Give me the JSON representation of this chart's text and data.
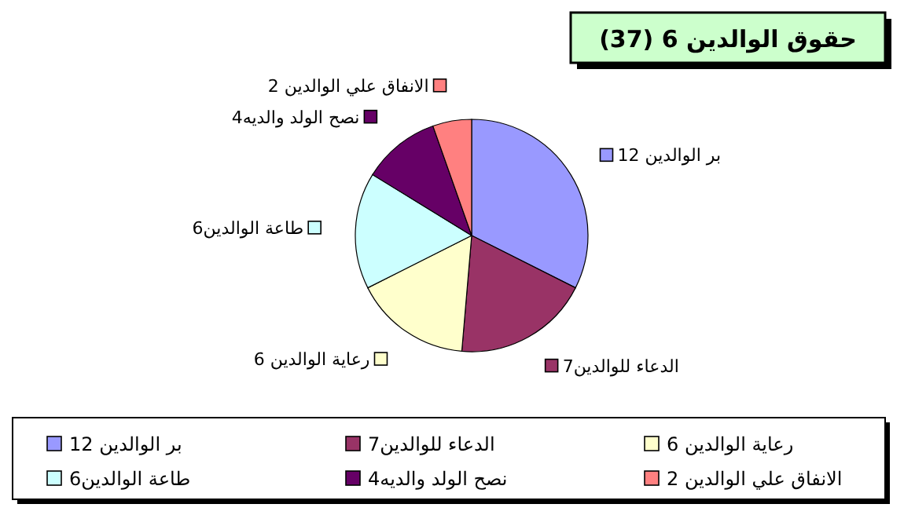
{
  "chart_data": {
    "type": "pie",
    "title": "حقوق الوالدين 6 (37)",
    "categories": [
      "بر الوالدين 12",
      "الدعاء للوالدين7",
      "رعاية الوالدين 6",
      "طاعة الوالدين6",
      "نصح الولد والديه4",
      "الانفاق علي الوالدين 2"
    ],
    "values": [
      12,
      7,
      6,
      6,
      4,
      2
    ],
    "colors": [
      "#9999ff",
      "#993366",
      "#ffffcc",
      "#ccffff",
      "#660066",
      "#ff8080"
    ],
    "legend": "bottom"
  }
}
